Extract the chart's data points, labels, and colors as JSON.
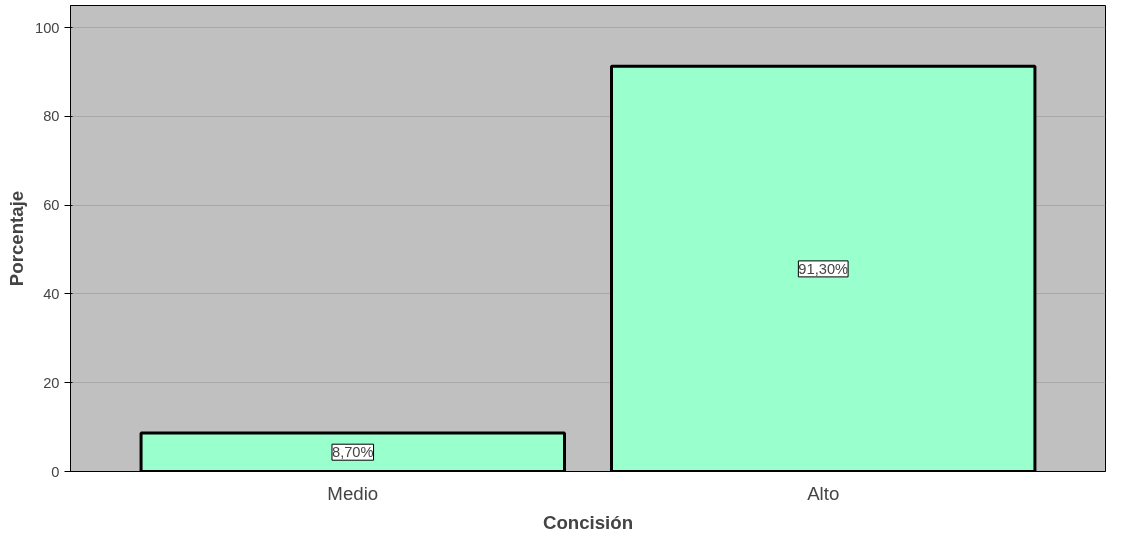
{
  "chart_data": {
    "type": "bar",
    "xlabel": "Concisión",
    "ylabel": "Porcentaje",
    "categories": [
      "Medio",
      "Alto"
    ],
    "values": [
      8.7,
      91.3
    ],
    "color": "#99ffcc",
    "value_labels": [
      "8,70%",
      "91,30%"
    ],
    "ylim": [
      0,
      105
    ],
    "yticks": [
      0,
      20,
      40,
      60,
      80,
      100
    ],
    "grid": "y"
  }
}
